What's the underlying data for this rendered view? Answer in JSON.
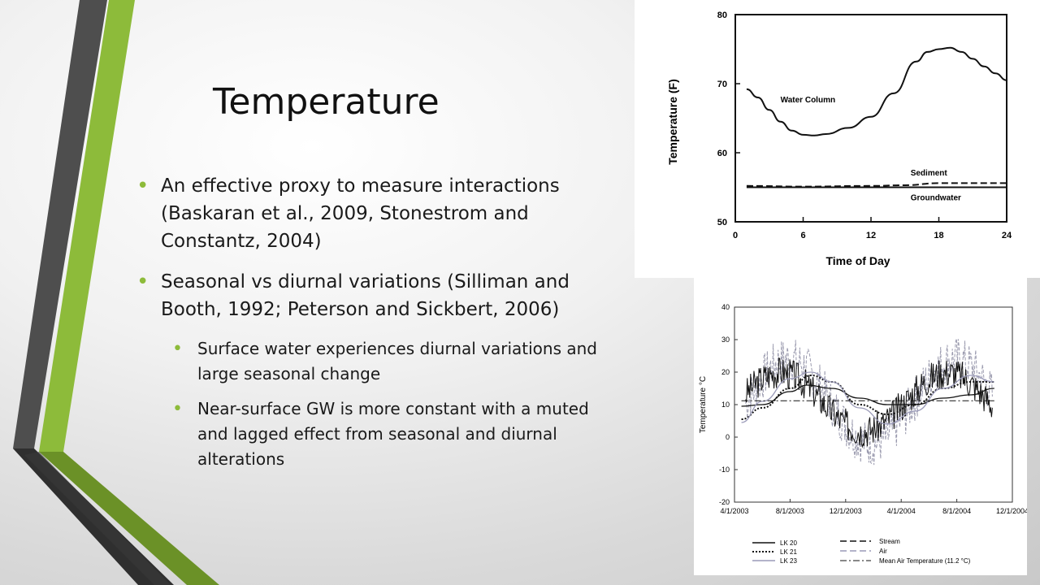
{
  "slide": {
    "title": "Temperature",
    "bullets": [
      "An effective proxy to measure interactions (Baskaran et al., 2009, Stonestrom and Constantz, 2004)",
      "Seasonal vs diurnal variations (Silliman and Booth, 1992; Peterson and Sickbert, 2006)"
    ],
    "sub_bullets": [
      "Surface water experiences diurnal variations and large seasonal change",
      "Near-surface GW is more constant with a muted and lagged effect from seasonal and diurnal alterations"
    ],
    "accent_color": "#8dbb3a",
    "dark_stripe_color": "#4a4a4a"
  },
  "chart_data": [
    {
      "type": "line",
      "title": "",
      "xlabel": "Time of Day",
      "ylabel": "Temperature (F)",
      "xlim": [
        0,
        24
      ],
      "ylim": [
        50,
        80
      ],
      "x_ticks": [
        "0",
        "6",
        "12",
        "18",
        "24"
      ],
      "y_ticks": [
        "50",
        "60",
        "70",
        "80"
      ],
      "annotations": [
        "Water Column",
        "Sediment",
        "Groundwater"
      ],
      "series": [
        {
          "name": "Water Column",
          "x": [
            1,
            2,
            3,
            4,
            5,
            6,
            7,
            8,
            10,
            12,
            14,
            16,
            17,
            18,
            19,
            20,
            21,
            22,
            23,
            24
          ],
          "y": [
            69.2,
            68,
            66.2,
            64.5,
            63.2,
            62.6,
            62.5,
            62.7,
            63.6,
            65.2,
            68.6,
            73.2,
            74.6,
            75,
            75.2,
            74.6,
            73.6,
            72.5,
            71.5,
            70.5
          ]
        },
        {
          "name": "Sediment",
          "x": [
            1,
            6,
            12,
            15,
            18,
            24
          ],
          "y": [
            55.2,
            55.1,
            55.2,
            55.3,
            55.6,
            55.6
          ]
        },
        {
          "name": "Groundwater",
          "x": [
            1,
            6,
            12,
            18,
            24
          ],
          "y": [
            55,
            55,
            55,
            55,
            55
          ]
        }
      ]
    },
    {
      "type": "line",
      "title": "",
      "xlabel": "",
      "ylabel": "Temperature °C",
      "xlim": [
        0,
        20
      ],
      "ylim": [
        -20,
        40
      ],
      "x_ticks": [
        "4/1/2003",
        "8/1/2003",
        "12/1/2003",
        "4/1/2004",
        "8/1/2004",
        "12/1/2004"
      ],
      "y_ticks": [
        "-20",
        "-10",
        "0",
        "10",
        "20",
        "30",
        "40"
      ],
      "legend": [
        "LK 20",
        "LK 21",
        "LK 23",
        "Stream",
        "Air",
        "Mean Air Temperature (11.2 °C)"
      ],
      "legend_placement": "bottom",
      "series": [
        {
          "name": "LK 20",
          "x": [
            0.5,
            2,
            4,
            5.2,
            7,
            9,
            11,
            13,
            15,
            17,
            18.7
          ],
          "y": [
            9.5,
            10,
            14,
            16,
            15,
            12,
            10,
            10,
            12,
            13,
            15
          ]
        },
        {
          "name": "LK 21",
          "x": [
            0.5,
            2,
            4,
            5.5,
            7,
            9,
            11,
            13,
            15,
            17,
            18.7
          ],
          "y": [
            5.5,
            9,
            15,
            19,
            17,
            10,
            7,
            10,
            15,
            17,
            17
          ]
        },
        {
          "name": "LK 23",
          "x": [
            0.5,
            2,
            4,
            5.5,
            7,
            9,
            11,
            13,
            15,
            17,
            18.7
          ],
          "y": [
            4.5,
            11,
            18,
            20,
            17,
            9,
            4,
            8,
            15,
            19,
            17
          ]
        },
        {
          "name": "Mean Air Temperature (11.2 °C)",
          "x": [
            0.5,
            18.7
          ],
          "y": [
            11.2,
            11.2
          ]
        }
      ]
    }
  ],
  "axis_titles": {
    "chart1_x": "Time of Day",
    "chart1_y": "Temperature (F)",
    "chart2_y": "Temperature °C"
  }
}
